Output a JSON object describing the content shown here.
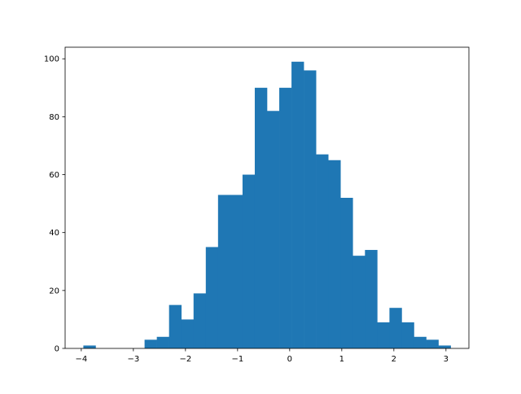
{
  "chart_data": {
    "type": "bar",
    "subtype": "histogram",
    "title": "",
    "xlabel": "",
    "ylabel": "",
    "bin_start": -3.96,
    "bin_width": 0.235,
    "counts": [
      1,
      0,
      0,
      0,
      0,
      3,
      4,
      15,
      10,
      19,
      35,
      53,
      53,
      60,
      90,
      82,
      90,
      99,
      96,
      67,
      65,
      52,
      32,
      34,
      9,
      14,
      9,
      4,
      3,
      1
    ],
    "xlim": [
      -4.31,
      3.44
    ],
    "ylim": [
      0,
      104
    ],
    "xticks": [
      -4,
      -3,
      -2,
      -1,
      0,
      1,
      2,
      3
    ],
    "xtick_labels": [
      "−4",
      "−3",
      "−2",
      "−1",
      "0",
      "1",
      "2",
      "3"
    ],
    "yticks": [
      0,
      20,
      40,
      60,
      80,
      100
    ],
    "ytick_labels": [
      "0",
      "20",
      "40",
      "60",
      "80",
      "100"
    ],
    "grid": false,
    "color": "#1f77b4"
  }
}
